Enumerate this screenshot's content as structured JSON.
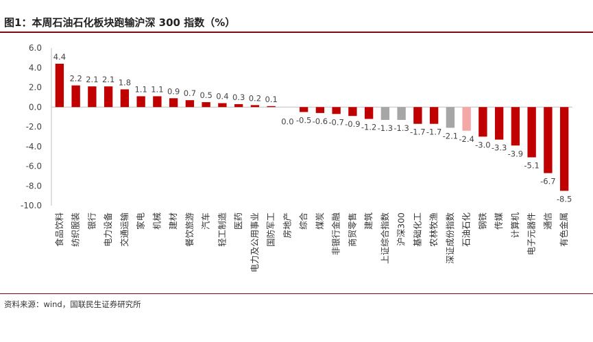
{
  "page": {
    "title": "图1：本周石油石化板块跑输沪深 300 指数（%）",
    "source": "资料来源：wind，国联民生证券研究所"
  },
  "colors": {
    "sector": "#c00000",
    "index": "#a6a6a6",
    "highlight": "#f4a7a7"
  },
  "chart_data": {
    "type": "bar",
    "title": "图1：本周石油石化板块跑输沪深 300 指数（%）",
    "xlabel": "",
    "ylabel": "",
    "ylim": [
      -10.0,
      6.0
    ],
    "yticks": [
      "6.0",
      "4.0",
      "2.0",
      "0.0",
      "-2.0",
      "-4.0",
      "-6.0",
      "-8.0",
      "-10.0"
    ],
    "yticks_values": [
      6,
      4,
      2,
      0,
      -2,
      -4,
      -6,
      -8,
      -10
    ],
    "grid": false,
    "legend": "none",
    "categories": [
      "食品饮料",
      "纺织服装",
      "银行",
      "电力设备",
      "交通运输",
      "家电",
      "机械",
      "建材",
      "餐饮旅游",
      "汽车",
      "轻工制造",
      "医药",
      "电力及公用事业",
      "国防军工",
      "房地产",
      "综合",
      "煤炭",
      "非银行金融",
      "商贸零售",
      "建筑",
      "上证综合指数",
      "沪深300",
      "基础化工",
      "农林牧渔",
      "深证成份指数",
      "石油石化",
      "钢铁",
      "传媒",
      "计算机",
      "电子元器件",
      "通信",
      "有色金属"
    ],
    "values": [
      4.4,
      2.2,
      2.1,
      2.1,
      1.8,
      1.1,
      1.1,
      0.9,
      0.7,
      0.5,
      0.4,
      0.3,
      0.2,
      0.1,
      0.0,
      -0.5,
      -0.6,
      -0.7,
      -0.9,
      -1.2,
      -1.3,
      -1.3,
      -1.7,
      -1.7,
      -2.1,
      -2.4,
      -3.0,
      -3.3,
      -3.9,
      -5.1,
      -6.7,
      -8.5
    ],
    "labels": [
      "4.4",
      "2.2",
      "2.1",
      "2.1",
      "1.8",
      "1.1",
      "1.1",
      "0.9",
      "0.7",
      "0.5",
      "0.4",
      "0.3",
      "0.2",
      "0.1",
      "0.0",
      "-0.5",
      "-0.6",
      "-0.7",
      "-0.9",
      "-1.2",
      "-1.3",
      "-1.3",
      "-1.7",
      "-1.7",
      "-2.1",
      "-2.4",
      "-3.0",
      "-3.3",
      "-3.9",
      "-5.1",
      "-6.7",
      "-8.5"
    ],
    "bar_colors": [
      "sector",
      "sector",
      "sector",
      "sector",
      "sector",
      "sector",
      "sector",
      "sector",
      "sector",
      "sector",
      "sector",
      "sector",
      "sector",
      "sector",
      "sector",
      "sector",
      "sector",
      "sector",
      "sector",
      "sector",
      "index",
      "index",
      "sector",
      "sector",
      "index",
      "highlight",
      "sector",
      "sector",
      "sector",
      "sector",
      "sector",
      "sector"
    ]
  }
}
